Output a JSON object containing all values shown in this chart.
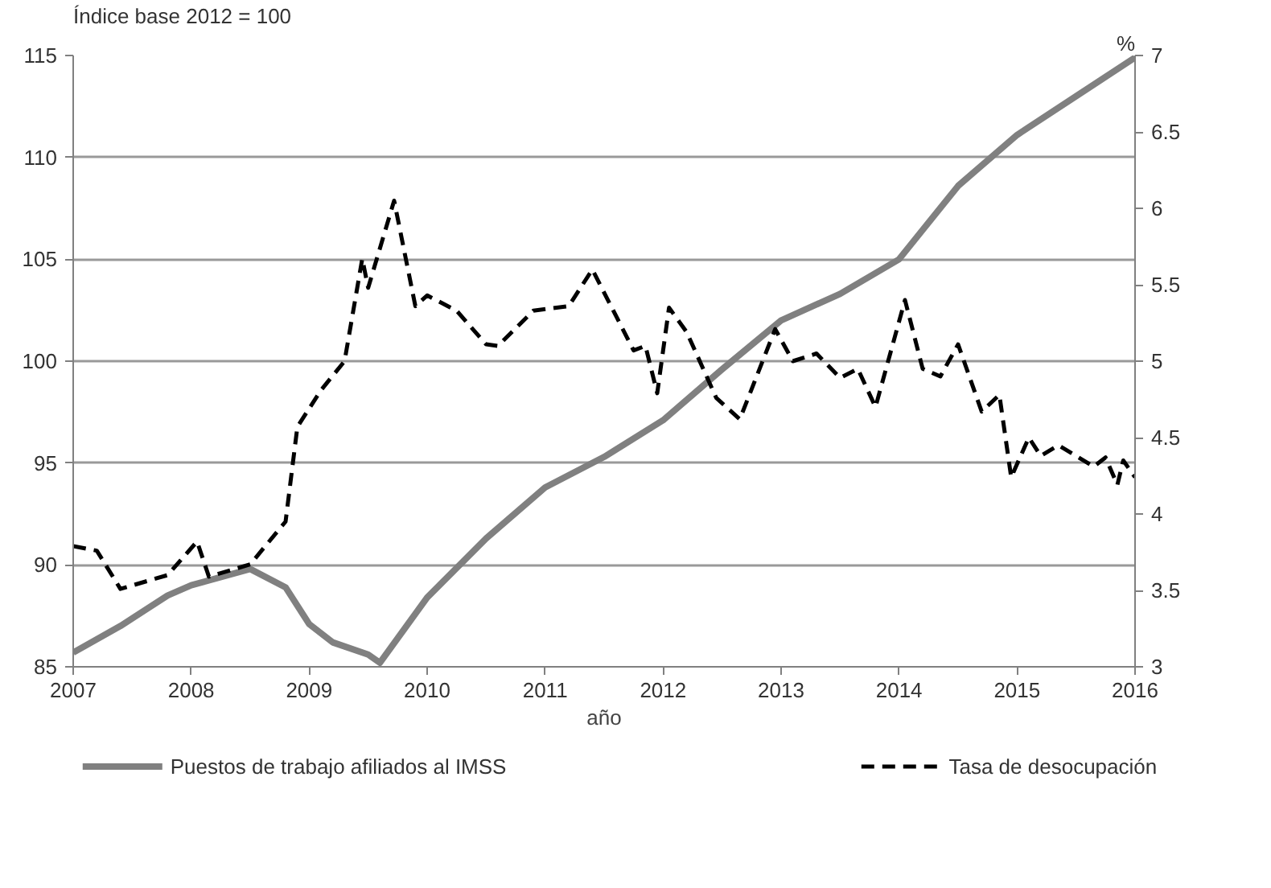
{
  "chart_data": {
    "type": "line",
    "xlabel": "año",
    "ylabel": "Índice base 2012 = 100",
    "y2label": "%",
    "xlim": [
      2007,
      2016
    ],
    "xticks": [
      2007,
      2008,
      2009,
      2010,
      2011,
      2012,
      2013,
      2014,
      2015,
      2016
    ],
    "ylim": [
      85,
      115
    ],
    "yticks": [
      85,
      90,
      95,
      100,
      105,
      110,
      115
    ],
    "y2lim": [
      3,
      7
    ],
    "y2ticks": [
      3,
      3.5,
      4,
      4.5,
      5,
      5.5,
      6,
      6.5,
      7
    ],
    "grid": "y",
    "legend": "bottom",
    "series": [
      {
        "name": "Puestos de trabajo afiliados al IMSS",
        "color": "#808080",
        "line_style": "solid",
        "x": [
          2007.0,
          2007.4,
          2007.8,
          2008.0,
          2008.5,
          2008.8,
          2009.0,
          2009.2,
          2009.5,
          2009.6,
          2010.0,
          2010.5,
          2011.0,
          2011.5,
          2012.0,
          2012.5,
          2013.0,
          2013.5,
          2014.0,
          2014.5,
          2015.0,
          2015.5,
          2016.0
        ],
        "values": [
          85.7,
          87.0,
          88.5,
          89.0,
          89.8,
          88.9,
          87.1,
          86.2,
          85.6,
          85.2,
          88.4,
          91.3,
          93.8,
          95.3,
          97.1,
          99.6,
          102.0,
          103.3,
          105.0,
          108.6,
          111.1,
          113.0,
          114.9
        ]
      },
      {
        "name": "Tasa de desocupación",
        "color": "#000000",
        "line_style": "dashed",
        "axis": "y2",
        "x": [
          2007.0,
          2007.2,
          2007.4,
          2007.8,
          2008.05,
          2008.15,
          2008.5,
          2008.8,
          2008.9,
          2009.1,
          2009.3,
          2009.45,
          2009.5,
          2009.72,
          2009.9,
          2010.0,
          2010.25,
          2010.5,
          2010.6,
          2010.9,
          2011.2,
          2011.4,
          2011.75,
          2011.85,
          2011.95,
          2012.05,
          2012.2,
          2012.45,
          2012.65,
          2012.95,
          2013.1,
          2013.3,
          2013.5,
          2013.65,
          2013.8,
          2014.05,
          2014.2,
          2014.35,
          2014.5,
          2014.7,
          2014.85,
          2014.95,
          2015.1,
          2015.2,
          2015.35,
          2015.65,
          2015.75,
          2015.85,
          2015.9,
          2016.0
        ],
        "values": [
          3.79,
          3.76,
          3.51,
          3.6,
          3.82,
          3.59,
          3.67,
          3.95,
          4.57,
          4.81,
          5.0,
          5.67,
          5.48,
          6.05,
          5.36,
          5.43,
          5.33,
          5.11,
          5.1,
          5.33,
          5.36,
          5.6,
          5.07,
          5.1,
          4.79,
          5.35,
          5.19,
          4.76,
          4.62,
          5.21,
          5.0,
          5.05,
          4.89,
          4.95,
          4.7,
          5.4,
          4.95,
          4.9,
          5.11,
          4.67,
          4.78,
          4.24,
          4.5,
          4.38,
          4.45,
          4.31,
          4.37,
          4.19,
          4.35,
          4.24
        ]
      }
    ]
  }
}
